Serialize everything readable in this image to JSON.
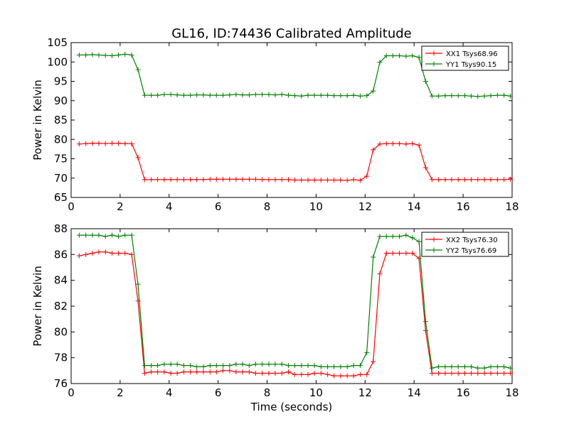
{
  "title": "GL16, ID:74436 Calibrated Amplitude",
  "xlabel": "Time (seconds)",
  "chart_data": [
    {
      "type": "line",
      "title": "GL16, ID:74436 Calibrated Amplitude",
      "xlabel": "",
      "ylabel": "Power in Kelvin",
      "xlim": [
        0,
        18
      ],
      "ylim": [
        65,
        105
      ],
      "xticks": [
        0,
        2,
        4,
        6,
        8,
        10,
        12,
        14,
        16,
        18
      ],
      "yticks": [
        65,
        70,
        75,
        80,
        85,
        90,
        95,
        100,
        105
      ],
      "legend_position": "top-right",
      "grid": false,
      "x": [
        0.33,
        0.6,
        0.87,
        1.13,
        1.4,
        1.67,
        1.93,
        2.2,
        2.47,
        2.73,
        3.0,
        3.27,
        3.53,
        3.8,
        4.07,
        4.33,
        4.6,
        4.87,
        5.13,
        5.4,
        5.67,
        5.93,
        6.2,
        6.47,
        6.73,
        7.0,
        7.27,
        7.53,
        7.8,
        8.07,
        8.33,
        8.6,
        8.87,
        9.13,
        9.4,
        9.67,
        9.93,
        10.2,
        10.47,
        10.73,
        11.0,
        11.27,
        11.53,
        11.8,
        12.07,
        12.33,
        12.6,
        12.87,
        13.13,
        13.4,
        13.67,
        13.93,
        14.2,
        14.47,
        14.73,
        15.0,
        15.27,
        15.53,
        15.8,
        16.07,
        16.33,
        16.6,
        16.87,
        17.13,
        17.4,
        17.67,
        17.93
      ],
      "series": [
        {
          "name": "XX1 Tsys68.96",
          "color": "#ff0000",
          "values": [
            78.8,
            78.9,
            79.0,
            79.0,
            78.9,
            79.0,
            79.0,
            78.9,
            78.9,
            75.3,
            69.6,
            69.6,
            69.6,
            69.6,
            69.6,
            69.6,
            69.6,
            69.6,
            69.6,
            69.6,
            69.7,
            69.7,
            69.7,
            69.7,
            69.7,
            69.7,
            69.7,
            69.7,
            69.6,
            69.6,
            69.6,
            69.6,
            69.6,
            69.5,
            69.5,
            69.5,
            69.5,
            69.5,
            69.5,
            69.5,
            69.5,
            69.4,
            69.6,
            69.4,
            70.5,
            77.3,
            78.8,
            78.9,
            78.9,
            78.9,
            78.8,
            78.9,
            78.5,
            72.7,
            69.6,
            69.6,
            69.6,
            69.6,
            69.6,
            69.6,
            69.6,
            69.6,
            69.6,
            69.6,
            69.6,
            69.6,
            69.7
          ]
        },
        {
          "name": "YY1 Tsys90.15",
          "color": "#008000",
          "values": [
            101.8,
            101.8,
            101.9,
            101.8,
            101.7,
            101.6,
            101.8,
            102.0,
            101.8,
            98.0,
            91.4,
            91.4,
            91.4,
            91.6,
            91.6,
            91.5,
            91.4,
            91.4,
            91.5,
            91.5,
            91.4,
            91.4,
            91.4,
            91.5,
            91.6,
            91.5,
            91.5,
            91.6,
            91.6,
            91.6,
            91.5,
            91.6,
            91.4,
            91.3,
            91.2,
            91.4,
            91.4,
            91.4,
            91.4,
            91.3,
            91.3,
            91.3,
            91.4,
            91.2,
            91.3,
            92.5,
            99.9,
            101.6,
            101.6,
            101.6,
            101.5,
            101.6,
            101.2,
            95.0,
            91.2,
            91.2,
            91.3,
            91.3,
            91.3,
            91.3,
            91.2,
            91.1,
            91.2,
            91.3,
            91.4,
            91.4,
            91.2
          ]
        }
      ]
    },
    {
      "type": "line",
      "title": "",
      "xlabel": "Time (seconds)",
      "ylabel": "Power in Kelvin",
      "xlim": [
        0,
        18
      ],
      "ylim": [
        76,
        88
      ],
      "xticks": [
        0,
        2,
        4,
        6,
        8,
        10,
        12,
        14,
        16,
        18
      ],
      "yticks": [
        76,
        78,
        80,
        82,
        84,
        86,
        88
      ],
      "legend_position": "top-right",
      "grid": false,
      "x": [
        0.33,
        0.6,
        0.87,
        1.13,
        1.4,
        1.67,
        1.93,
        2.2,
        2.47,
        2.73,
        3.0,
        3.27,
        3.53,
        3.8,
        4.07,
        4.33,
        4.6,
        4.87,
        5.13,
        5.4,
        5.67,
        5.93,
        6.2,
        6.47,
        6.73,
        7.0,
        7.27,
        7.53,
        7.8,
        8.07,
        8.33,
        8.6,
        8.87,
        9.13,
        9.4,
        9.67,
        9.93,
        10.2,
        10.47,
        10.73,
        11.0,
        11.27,
        11.53,
        11.8,
        12.07,
        12.33,
        12.6,
        12.87,
        13.13,
        13.4,
        13.67,
        13.93,
        14.2,
        14.47,
        14.73,
        15.0,
        15.27,
        15.53,
        15.8,
        16.07,
        16.33,
        16.6,
        16.87,
        17.13,
        17.4,
        17.67,
        17.93
      ],
      "series": [
        {
          "name": "XX2 Tsys76.30",
          "color": "#ff0000",
          "values": [
            85.9,
            86.0,
            86.1,
            86.2,
            86.2,
            86.1,
            86.1,
            86.1,
            86.0,
            82.4,
            76.8,
            76.9,
            76.9,
            76.9,
            76.8,
            76.8,
            76.9,
            76.9,
            76.9,
            76.9,
            76.9,
            76.9,
            77.0,
            77.0,
            76.9,
            76.9,
            76.9,
            76.8,
            76.8,
            76.8,
            76.8,
            76.8,
            76.9,
            76.7,
            76.7,
            76.7,
            76.8,
            76.8,
            76.7,
            76.6,
            76.6,
            76.6,
            76.6,
            76.7,
            76.7,
            77.7,
            84.5,
            86.1,
            86.1,
            86.1,
            86.1,
            86.1,
            85.7,
            80.1,
            76.8,
            76.8,
            76.8,
            76.8,
            76.8,
            76.8,
            76.8,
            76.8,
            76.8,
            76.8,
            76.8,
            76.8,
            76.8
          ]
        },
        {
          "name": "YY2 Tsys76.69",
          "color": "#008000",
          "values": [
            87.5,
            87.5,
            87.5,
            87.5,
            87.4,
            87.5,
            87.4,
            87.5,
            87.5,
            83.7,
            77.4,
            77.4,
            77.4,
            77.5,
            77.5,
            77.5,
            77.4,
            77.4,
            77.3,
            77.3,
            77.4,
            77.4,
            77.4,
            77.4,
            77.5,
            77.5,
            77.4,
            77.5,
            77.5,
            77.5,
            77.5,
            77.5,
            77.4,
            77.4,
            77.4,
            77.4,
            77.4,
            77.3,
            77.3,
            77.3,
            77.3,
            77.3,
            77.4,
            77.4,
            78.4,
            85.8,
            87.4,
            87.4,
            87.4,
            87.4,
            87.5,
            87.3,
            87.0,
            80.8,
            77.2,
            77.3,
            77.3,
            77.3,
            77.3,
            77.3,
            77.3,
            77.2,
            77.2,
            77.3,
            77.3,
            77.3,
            77.2
          ]
        }
      ]
    }
  ]
}
